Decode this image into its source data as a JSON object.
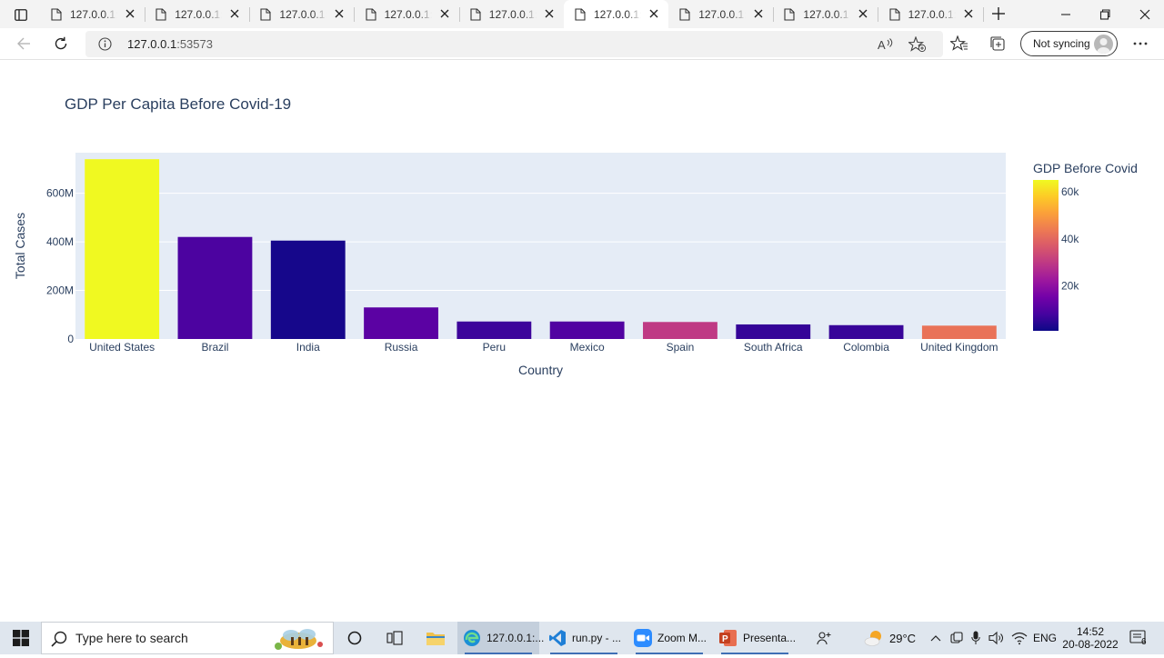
{
  "browser": {
    "tabs": [
      {
        "title": "127.0.0.1:53573"
      },
      {
        "title": "127.0.0.1:53573"
      },
      {
        "title": "127.0.0.1:53573"
      },
      {
        "title": "127.0.0.1:53573"
      },
      {
        "title": "127.0.0.1:53573"
      },
      {
        "title": "127.0.0.1:53573",
        "active": true
      },
      {
        "title": "127.0.0.1:53573"
      },
      {
        "title": "127.0.0.1:53573"
      },
      {
        "title": "127.0.0.1:53573"
      }
    ],
    "tab_titles": [
      "127.0.0.1:5",
      "127.0.0.1:5",
      "127.0.0.1:5",
      "127.0.0.1:5",
      "127.0.0.1:5",
      "127.0.0.1:5",
      "127.0.0.1:5",
      "127.0.0.1:5",
      "127.0.0.1:5"
    ],
    "address": {
      "host": "127.0.0.1",
      "port": ":53573"
    },
    "sync_label": "Not syncing",
    "icons": [
      "tab-actions-icon",
      "page-icon",
      "close-icon",
      "new-tab-icon",
      "minimize-icon",
      "maximize-icon",
      "close-window-icon",
      "back-icon",
      "refresh-icon",
      "info-icon",
      "read-aloud-icon",
      "add-favorite-icon",
      "favorites-icon",
      "collections-icon",
      "more-icon"
    ]
  },
  "chart_data": {
    "type": "bar",
    "title": "GDP Per Capita Before Covid-19",
    "xlabel": "Country",
    "ylabel": "Total Cases",
    "categories": [
      "United States",
      "Brazil",
      "India",
      "Russia",
      "Peru",
      "Mexico",
      "Spain",
      "South Africa",
      "Colombia",
      "United Kingdom"
    ],
    "values": [
      740000000,
      420000000,
      405000000,
      130000000,
      72000000,
      72000000,
      70000000,
      60000000,
      57000000,
      55000000
    ],
    "color_values": [
      65000,
      9000,
      2100,
      11500,
      7000,
      9900,
      30000,
      6000,
      6400,
      42300
    ],
    "ylim": [
      0,
      740000000
    ],
    "yticks": [
      0,
      200000000,
      400000000,
      600000000
    ],
    "ytick_labels": [
      "0",
      "200M",
      "400M",
      "600M"
    ],
    "colorbar": {
      "title": "GDP Before Covid",
      "range": [
        1000,
        65000
      ],
      "ticks": [
        20000,
        40000,
        60000
      ],
      "tick_labels": [
        "20k",
        "40k",
        "60k"
      ],
      "colorscale": "Plasma"
    },
    "plot_background": "#e5ecf6",
    "grid": true,
    "legend": "colorbar-right"
  },
  "taskbar": {
    "search_placeholder": "Type here to search",
    "apps": [
      {
        "label": "127.0.0.1:...",
        "icon": "edge-icon",
        "active": true
      },
      {
        "label": "run.py - ...",
        "icon": "vscode-icon"
      },
      {
        "label": "Zoom M...",
        "icon": "zoom-icon"
      },
      {
        "label": "Presenta...",
        "icon": "powerpoint-icon"
      }
    ],
    "weather": "29°C",
    "language": "ENG",
    "time": "14:52",
    "date": "20-08-2022",
    "notification_count": "6"
  }
}
